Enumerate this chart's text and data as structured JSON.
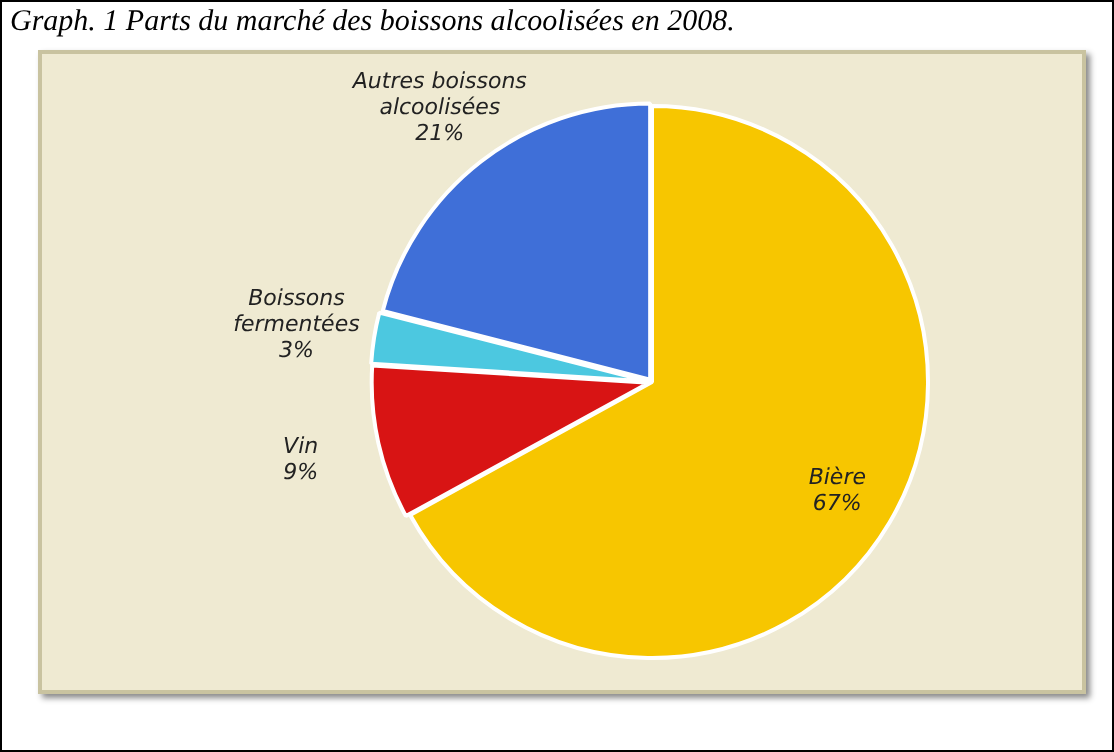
{
  "chart_data": {
    "type": "pie",
    "title": "Graph. 1 Parts du marché des boissons alcoolisées en 2008.",
    "categories": [
      "Bière",
      "Vin",
      "Boissons fermentées",
      "Autres boissons alcoolisées"
    ],
    "values": [
      67,
      9,
      3,
      21
    ],
    "colors": [
      "#f7c600",
      "#d81414",
      "#4cc8e0",
      "#3f6fd8"
    ],
    "value_labels": [
      "67%",
      "9%",
      "3%",
      "21%"
    ],
    "legend": false
  }
}
